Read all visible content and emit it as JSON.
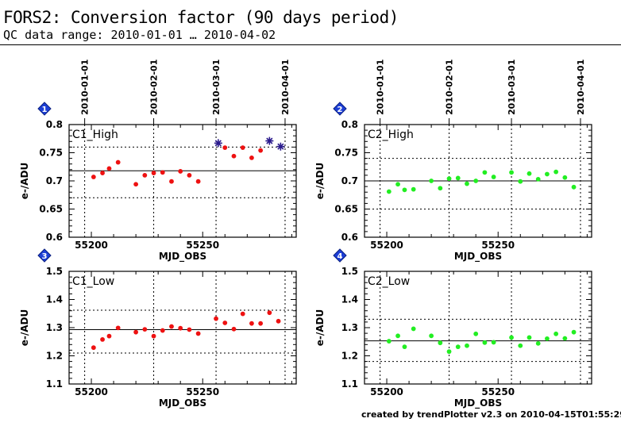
{
  "header": {
    "title": "FORS2: Conversion factor (90 days period)",
    "subtitle": "QC data range: 2010-01-01 … 2010-04-02"
  },
  "footer": {
    "text": "created by trendPlotter v2.3 on 2010-04-15T01:55:29"
  },
  "colors": {
    "c1": "#ee1111",
    "c2": "#22ee22",
    "outlier": "#2a1a8c",
    "badge": "#1d3fd6"
  },
  "chart_data": [
    {
      "type": "scatter",
      "badge": "1",
      "label": "C1_High",
      "xlabel": "MJD_OBS",
      "ylabel": "e-/ADU",
      "xlim": [
        55190,
        55292
      ],
      "ylim": [
        0.6,
        0.8
      ],
      "xticks": [
        55200,
        55250
      ],
      "yticks": [
        0.6,
        0.65,
        0.7,
        0.75,
        0.8
      ],
      "date_ticks": [
        {
          "label": "2010-01-01",
          "x": 55197
        },
        {
          "label": "2010-02-01",
          "x": 55228
        },
        {
          "label": "2010-03-01",
          "x": 55256
        },
        {
          "label": "2010-04-01",
          "x": 55287
        }
      ],
      "ref_lines": {
        "median": 0.718,
        "limits": [
          0.67,
          0.76
        ]
      },
      "x": [
        55201,
        55205,
        55208,
        55212,
        55220,
        55224,
        55228,
        55232,
        55236,
        55240,
        55244,
        55248
      ],
      "y": [
        0.707,
        0.714,
        0.722,
        0.733,
        0.694,
        0.71,
        0.714,
        0.715,
        0.699,
        0.717,
        0.71,
        0.699
      ],
      "x_b": [
        55260,
        55264,
        55268,
        55272,
        55276
      ],
      "y_b": [
        0.759,
        0.744,
        0.759,
        0.741,
        0.754
      ],
      "outliers": {
        "x": [
          55257,
          55280,
          55285
        ],
        "y": [
          0.767,
          0.771,
          0.761
        ]
      }
    },
    {
      "type": "scatter",
      "badge": "2",
      "label": "C2_High",
      "xlabel": "MJD_OBS",
      "ylabel": "e-/ADU",
      "xlim": [
        55190,
        55292
      ],
      "ylim": [
        0.6,
        0.8
      ],
      "xticks": [
        55200,
        55250
      ],
      "yticks": [
        0.6,
        0.65,
        0.7,
        0.75,
        0.8
      ],
      "date_ticks": [
        {
          "label": "2010-01-01",
          "x": 55197
        },
        {
          "label": "2010-02-01",
          "x": 55228
        },
        {
          "label": "2010-03-01",
          "x": 55256
        },
        {
          "label": "2010-04-01",
          "x": 55287
        }
      ],
      "ref_lines": {
        "median": 0.7,
        "limits": [
          0.65,
          0.74
        ]
      },
      "x": [
        55201,
        55205,
        55208,
        55212,
        55220,
        55224,
        55228,
        55232,
        55236,
        55240,
        55244,
        55248,
        55256,
        55260,
        55264,
        55268,
        55272,
        55276,
        55280,
        55284
      ],
      "y": [
        0.681,
        0.694,
        0.684,
        0.685,
        0.7,
        0.687,
        0.704,
        0.705,
        0.695,
        0.7,
        0.715,
        0.707,
        0.715,
        0.699,
        0.713,
        0.703,
        0.712,
        0.716,
        0.706,
        0.689
      ],
      "outliers": {
        "x": [],
        "y": []
      }
    },
    {
      "type": "scatter",
      "badge": "3",
      "label": "C1_Low",
      "xlabel": "MJD_OBS",
      "ylabel": "e-/ADU",
      "xlim": [
        55190,
        55292
      ],
      "ylim": [
        1.1,
        1.5
      ],
      "xticks": [
        55200,
        55250
      ],
      "yticks": [
        1.1,
        1.2,
        1.3,
        1.4,
        1.5
      ],
      "ref_lines": {
        "median": 1.293,
        "limits": [
          1.21,
          1.362
        ]
      },
      "x": [
        55201,
        55205,
        55208,
        55212,
        55220,
        55224,
        55228,
        55232,
        55236,
        55240,
        55244,
        55248
      ],
      "y": [
        1.229,
        1.258,
        1.27,
        1.299,
        1.284,
        1.294,
        1.27,
        1.29,
        1.304,
        1.298,
        1.293,
        1.279
      ],
      "x_b": [
        55256,
        55260,
        55264,
        55268,
        55272,
        55276,
        55280,
        55284
      ],
      "y_b": [
        1.332,
        1.317,
        1.295,
        1.349,
        1.315,
        1.315,
        1.353,
        1.323
      ],
      "outliers": {
        "x": [],
        "y": []
      }
    },
    {
      "type": "scatter",
      "badge": "4",
      "label": "C2_Low",
      "xlabel": "MJD_OBS",
      "ylabel": "e-/ADU",
      "xlim": [
        55190,
        55292
      ],
      "ylim": [
        1.1,
        1.5
      ],
      "xticks": [
        55200,
        55250
      ],
      "yticks": [
        1.1,
        1.2,
        1.3,
        1.4,
        1.5
      ],
      "ref_lines": {
        "median": 1.253,
        "limits": [
          1.18,
          1.33
        ]
      },
      "x": [
        55201,
        55205,
        55208,
        55212,
        55220,
        55224,
        55228,
        55232,
        55236,
        55240,
        55244,
        55248,
        55256,
        55260,
        55264,
        55268,
        55272,
        55276,
        55280,
        55284
      ],
      "y": [
        1.252,
        1.271,
        1.232,
        1.296,
        1.271,
        1.246,
        1.215,
        1.232,
        1.236,
        1.278,
        1.247,
        1.248,
        1.265,
        1.236,
        1.265,
        1.244,
        1.261,
        1.278,
        1.262,
        1.284
      ],
      "outliers": {
        "x": [],
        "y": []
      }
    }
  ]
}
